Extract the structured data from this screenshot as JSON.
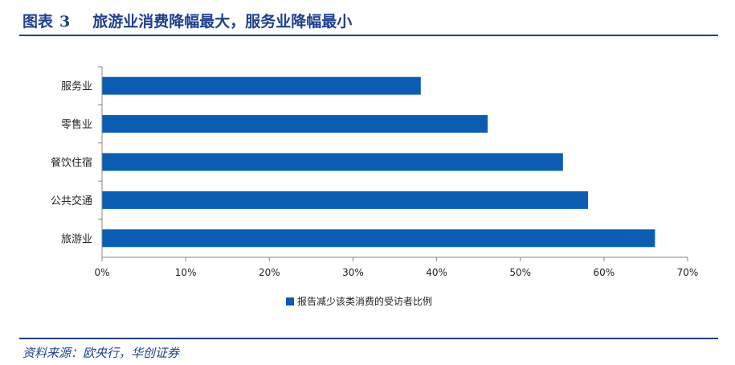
{
  "figure": {
    "label": "图表",
    "number": "3",
    "title": "旅游业消费降幅最大，服务业降幅最小",
    "source": "资料来源：欧央行，华创证券"
  },
  "chart_data": {
    "type": "bar",
    "orientation": "horizontal",
    "categories": [
      "服务业",
      "零售业",
      "餐饮住宿",
      "公共交通",
      "旅游业"
    ],
    "series": [
      {
        "name": "报告减少该类消费的受访者比例",
        "values": [
          38.1,
          46.1,
          55.1,
          58.1,
          66.1
        ]
      }
    ],
    "xlim": [
      0,
      70
    ],
    "x_ticks": [
      "0%",
      "10%",
      "20%",
      "30%",
      "40%",
      "50%",
      "60%",
      "70%"
    ],
    "grid": false,
    "legend_position": "bottom",
    "bar_color": "#0a5db3"
  }
}
